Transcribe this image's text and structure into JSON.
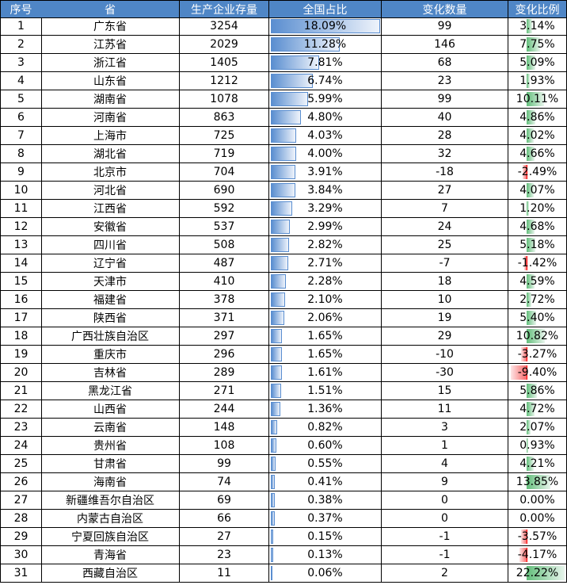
{
  "table": {
    "header": [
      "序号",
      "省",
      "生产企业存量",
      "全国占比",
      "变化数量",
      "变化比例"
    ],
    "rows": [
      [
        "1",
        "广东省",
        "3254",
        "18.09%",
        "99",
        "3.14%"
      ],
      [
        "2",
        "江苏省",
        "2029",
        "11.28%",
        "146",
        "7.75%"
      ],
      [
        "3",
        "浙江省",
        "1405",
        "7.81%",
        "68",
        "5.09%"
      ],
      [
        "4",
        "山东省",
        "1212",
        "6.74%",
        "23",
        "1.93%"
      ],
      [
        "5",
        "湖南省",
        "1078",
        "5.99%",
        "99",
        "10.11%"
      ],
      [
        "6",
        "河南省",
        "863",
        "4.80%",
        "40",
        "4.86%"
      ],
      [
        "7",
        "上海市",
        "725",
        "4.03%",
        "28",
        "4.02%"
      ],
      [
        "8",
        "湖北省",
        "719",
        "4.00%",
        "32",
        "4.66%"
      ],
      [
        "9",
        "北京市",
        "704",
        "3.91%",
        "-18",
        "-2.49%"
      ],
      [
        "10",
        "河北省",
        "690",
        "3.84%",
        "27",
        "4.07%"
      ],
      [
        "11",
        "江西省",
        "592",
        "3.29%",
        "7",
        "1.20%"
      ],
      [
        "12",
        "安徽省",
        "537",
        "2.99%",
        "24",
        "4.68%"
      ],
      [
        "13",
        "四川省",
        "508",
        "2.82%",
        "25",
        "5.18%"
      ],
      [
        "14",
        "辽宁省",
        "487",
        "2.71%",
        "-7",
        "-1.42%"
      ],
      [
        "15",
        "天津市",
        "410",
        "2.28%",
        "18",
        "4.59%"
      ],
      [
        "16",
        "福建省",
        "378",
        "2.10%",
        "10",
        "2.72%"
      ],
      [
        "17",
        "陕西省",
        "371",
        "2.06%",
        "19",
        "5.40%"
      ],
      [
        "18",
        "广西壮族自治区",
        "297",
        "1.65%",
        "29",
        "10.82%"
      ],
      [
        "19",
        "重庆市",
        "296",
        "1.65%",
        "-10",
        "-3.27%"
      ],
      [
        "20",
        "吉林省",
        "289",
        "1.61%",
        "-30",
        "-9.40%"
      ],
      [
        "21",
        "黑龙江省",
        "271",
        "1.51%",
        "15",
        "5.86%"
      ],
      [
        "22",
        "山西省",
        "244",
        "1.36%",
        "11",
        "4.72%"
      ],
      [
        "23",
        "云南省",
        "148",
        "0.82%",
        "3",
        "2.07%"
      ],
      [
        "24",
        "贵州省",
        "108",
        "0.60%",
        "1",
        "0.93%"
      ],
      [
        "25",
        "甘肃省",
        "99",
        "0.55%",
        "4",
        "4.21%"
      ],
      [
        "26",
        "海南省",
        "74",
        "0.41%",
        "9",
        "13.85%"
      ],
      [
        "27",
        "新疆维吾尔自治区",
        "69",
        "0.38%",
        "0",
        "0.00%"
      ],
      [
        "28",
        "内蒙古自治区",
        "66",
        "0.37%",
        "0",
        "0.00%"
      ],
      [
        "29",
        "宁夏回族自治区",
        "27",
        "0.15%",
        "-1",
        "-3.57%"
      ],
      [
        "30",
        "青海省",
        "23",
        "0.13%",
        "-1",
        "-4.17%"
      ],
      [
        "31",
        "西藏自治区",
        "11",
        "0.06%",
        "2",
        "22.22%"
      ]
    ]
  }
}
